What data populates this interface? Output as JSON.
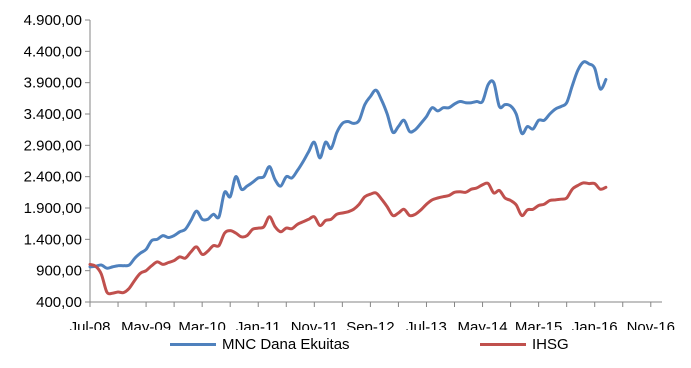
{
  "chart_data": {
    "type": "line",
    "ylim": [
      400,
      4900
    ],
    "yticks": [
      "400,00",
      "900,00",
      "1.400,00",
      "1.900,00",
      "2.400,00",
      "2.900,00",
      "3.400,00",
      "3.900,00",
      "4.400,00",
      "4.900,00"
    ],
    "ytick_values": [
      400,
      900,
      1400,
      1900,
      2400,
      2900,
      3400,
      3900,
      4400,
      4900
    ],
    "xticks": [
      "Jul-08",
      "May-09",
      "Mar-10",
      "Jan-11",
      "Nov-11",
      "Sep-12",
      "Jul-13",
      "May-14",
      "Mar-15",
      "Jan-16",
      "Nov-16"
    ],
    "xtick_index": [
      0,
      10,
      20,
      30,
      40,
      50,
      60,
      70,
      80,
      90,
      100
    ],
    "x_range": [
      0,
      102
    ],
    "grid": false,
    "legend_position": "bottom",
    "series": [
      {
        "name": "MNC Dana Ekuitas",
        "color": "#4f81bd",
        "values": [
          [
            0,
            960
          ],
          [
            1,
            970
          ],
          [
            2,
            990
          ],
          [
            3,
            940
          ],
          [
            4,
            960
          ],
          [
            5,
            980
          ],
          [
            6,
            980
          ],
          [
            7,
            990
          ],
          [
            8,
            1100
          ],
          [
            9,
            1180
          ],
          [
            10,
            1240
          ],
          [
            11,
            1380
          ],
          [
            12,
            1400
          ],
          [
            13,
            1460
          ],
          [
            14,
            1430
          ],
          [
            15,
            1460
          ],
          [
            16,
            1520
          ],
          [
            17,
            1560
          ],
          [
            18,
            1700
          ],
          [
            19,
            1850
          ],
          [
            20,
            1720
          ],
          [
            21,
            1720
          ],
          [
            22,
            1800
          ],
          [
            23,
            1760
          ],
          [
            24,
            2150
          ],
          [
            25,
            2080
          ],
          [
            26,
            2400
          ],
          [
            27,
            2200
          ],
          [
            28,
            2250
          ],
          [
            29,
            2310
          ],
          [
            30,
            2380
          ],
          [
            31,
            2400
          ],
          [
            32,
            2560
          ],
          [
            33,
            2350
          ],
          [
            34,
            2250
          ],
          [
            35,
            2400
          ],
          [
            36,
            2380
          ],
          [
            37,
            2500
          ],
          [
            38,
            2640
          ],
          [
            39,
            2800
          ],
          [
            40,
            2950
          ],
          [
            41,
            2700
          ],
          [
            42,
            2950
          ],
          [
            43,
            2850
          ],
          [
            44,
            3100
          ],
          [
            45,
            3250
          ],
          [
            46,
            3280
          ],
          [
            47,
            3250
          ],
          [
            48,
            3300
          ],
          [
            49,
            3550
          ],
          [
            50,
            3680
          ],
          [
            51,
            3780
          ],
          [
            52,
            3620
          ],
          [
            53,
            3400
          ],
          [
            54,
            3110
          ],
          [
            55,
            3200
          ],
          [
            56,
            3300
          ],
          [
            57,
            3120
          ],
          [
            58,
            3150
          ],
          [
            59,
            3250
          ],
          [
            60,
            3360
          ],
          [
            61,
            3500
          ],
          [
            62,
            3450
          ],
          [
            63,
            3500
          ],
          [
            64,
            3500
          ],
          [
            65,
            3560
          ],
          [
            66,
            3600
          ],
          [
            67,
            3580
          ],
          [
            68,
            3580
          ],
          [
            69,
            3600
          ],
          [
            70,
            3600
          ],
          [
            71,
            3870
          ],
          [
            72,
            3900
          ],
          [
            73,
            3520
          ],
          [
            74,
            3550
          ],
          [
            75,
            3530
          ],
          [
            76,
            3400
          ],
          [
            77,
            3090
          ],
          [
            78,
            3200
          ],
          [
            79,
            3160
          ],
          [
            80,
            3300
          ],
          [
            81,
            3300
          ],
          [
            82,
            3400
          ],
          [
            83,
            3480
          ],
          [
            84,
            3520
          ],
          [
            85,
            3580
          ],
          [
            86,
            3850
          ],
          [
            87,
            4100
          ],
          [
            88,
            4230
          ],
          [
            89,
            4200
          ],
          [
            90,
            4130
          ],
          [
            91,
            3800
          ],
          [
            92,
            3950
          ]
        ]
      },
      {
        "name": "IHSG",
        "color": "#c0504d",
        "values": [
          [
            0,
            1000
          ],
          [
            1,
            970
          ],
          [
            2,
            850
          ],
          [
            3,
            560
          ],
          [
            4,
            540
          ],
          [
            5,
            560
          ],
          [
            6,
            550
          ],
          [
            7,
            620
          ],
          [
            8,
            750
          ],
          [
            9,
            860
          ],
          [
            10,
            900
          ],
          [
            11,
            980
          ],
          [
            12,
            1040
          ],
          [
            13,
            1000
          ],
          [
            14,
            1030
          ],
          [
            15,
            1060
          ],
          [
            16,
            1120
          ],
          [
            17,
            1100
          ],
          [
            18,
            1200
          ],
          [
            19,
            1280
          ],
          [
            20,
            1160
          ],
          [
            21,
            1210
          ],
          [
            22,
            1300
          ],
          [
            23,
            1300
          ],
          [
            24,
            1500
          ],
          [
            25,
            1540
          ],
          [
            26,
            1500
          ],
          [
            27,
            1440
          ],
          [
            28,
            1460
          ],
          [
            29,
            1560
          ],
          [
            30,
            1580
          ],
          [
            31,
            1600
          ],
          [
            32,
            1760
          ],
          [
            33,
            1600
          ],
          [
            34,
            1520
          ],
          [
            35,
            1580
          ],
          [
            36,
            1570
          ],
          [
            37,
            1640
          ],
          [
            38,
            1680
          ],
          [
            39,
            1720
          ],
          [
            40,
            1760
          ],
          [
            41,
            1620
          ],
          [
            42,
            1700
          ],
          [
            43,
            1720
          ],
          [
            44,
            1800
          ],
          [
            45,
            1820
          ],
          [
            46,
            1840
          ],
          [
            47,
            1880
          ],
          [
            48,
            1960
          ],
          [
            49,
            2080
          ],
          [
            50,
            2120
          ],
          [
            51,
            2140
          ],
          [
            52,
            2040
          ],
          [
            53,
            1920
          ],
          [
            54,
            1780
          ],
          [
            55,
            1820
          ],
          [
            56,
            1880
          ],
          [
            57,
            1780
          ],
          [
            58,
            1800
          ],
          [
            59,
            1870
          ],
          [
            60,
            1960
          ],
          [
            61,
            2030
          ],
          [
            62,
            2060
          ],
          [
            63,
            2080
          ],
          [
            64,
            2100
          ],
          [
            65,
            2150
          ],
          [
            66,
            2160
          ],
          [
            67,
            2150
          ],
          [
            68,
            2200
          ],
          [
            69,
            2220
          ],
          [
            70,
            2270
          ],
          [
            71,
            2290
          ],
          [
            72,
            2140
          ],
          [
            73,
            2180
          ],
          [
            74,
            2060
          ],
          [
            75,
            2020
          ],
          [
            76,
            1950
          ],
          [
            77,
            1780
          ],
          [
            78,
            1870
          ],
          [
            79,
            1880
          ],
          [
            80,
            1940
          ],
          [
            81,
            1960
          ],
          [
            82,
            2020
          ],
          [
            83,
            2030
          ],
          [
            84,
            2040
          ],
          [
            85,
            2060
          ],
          [
            86,
            2200
          ],
          [
            87,
            2260
          ],
          [
            88,
            2300
          ],
          [
            89,
            2290
          ],
          [
            90,
            2290
          ],
          [
            91,
            2200
          ],
          [
            92,
            2230
          ]
        ]
      }
    ]
  }
}
